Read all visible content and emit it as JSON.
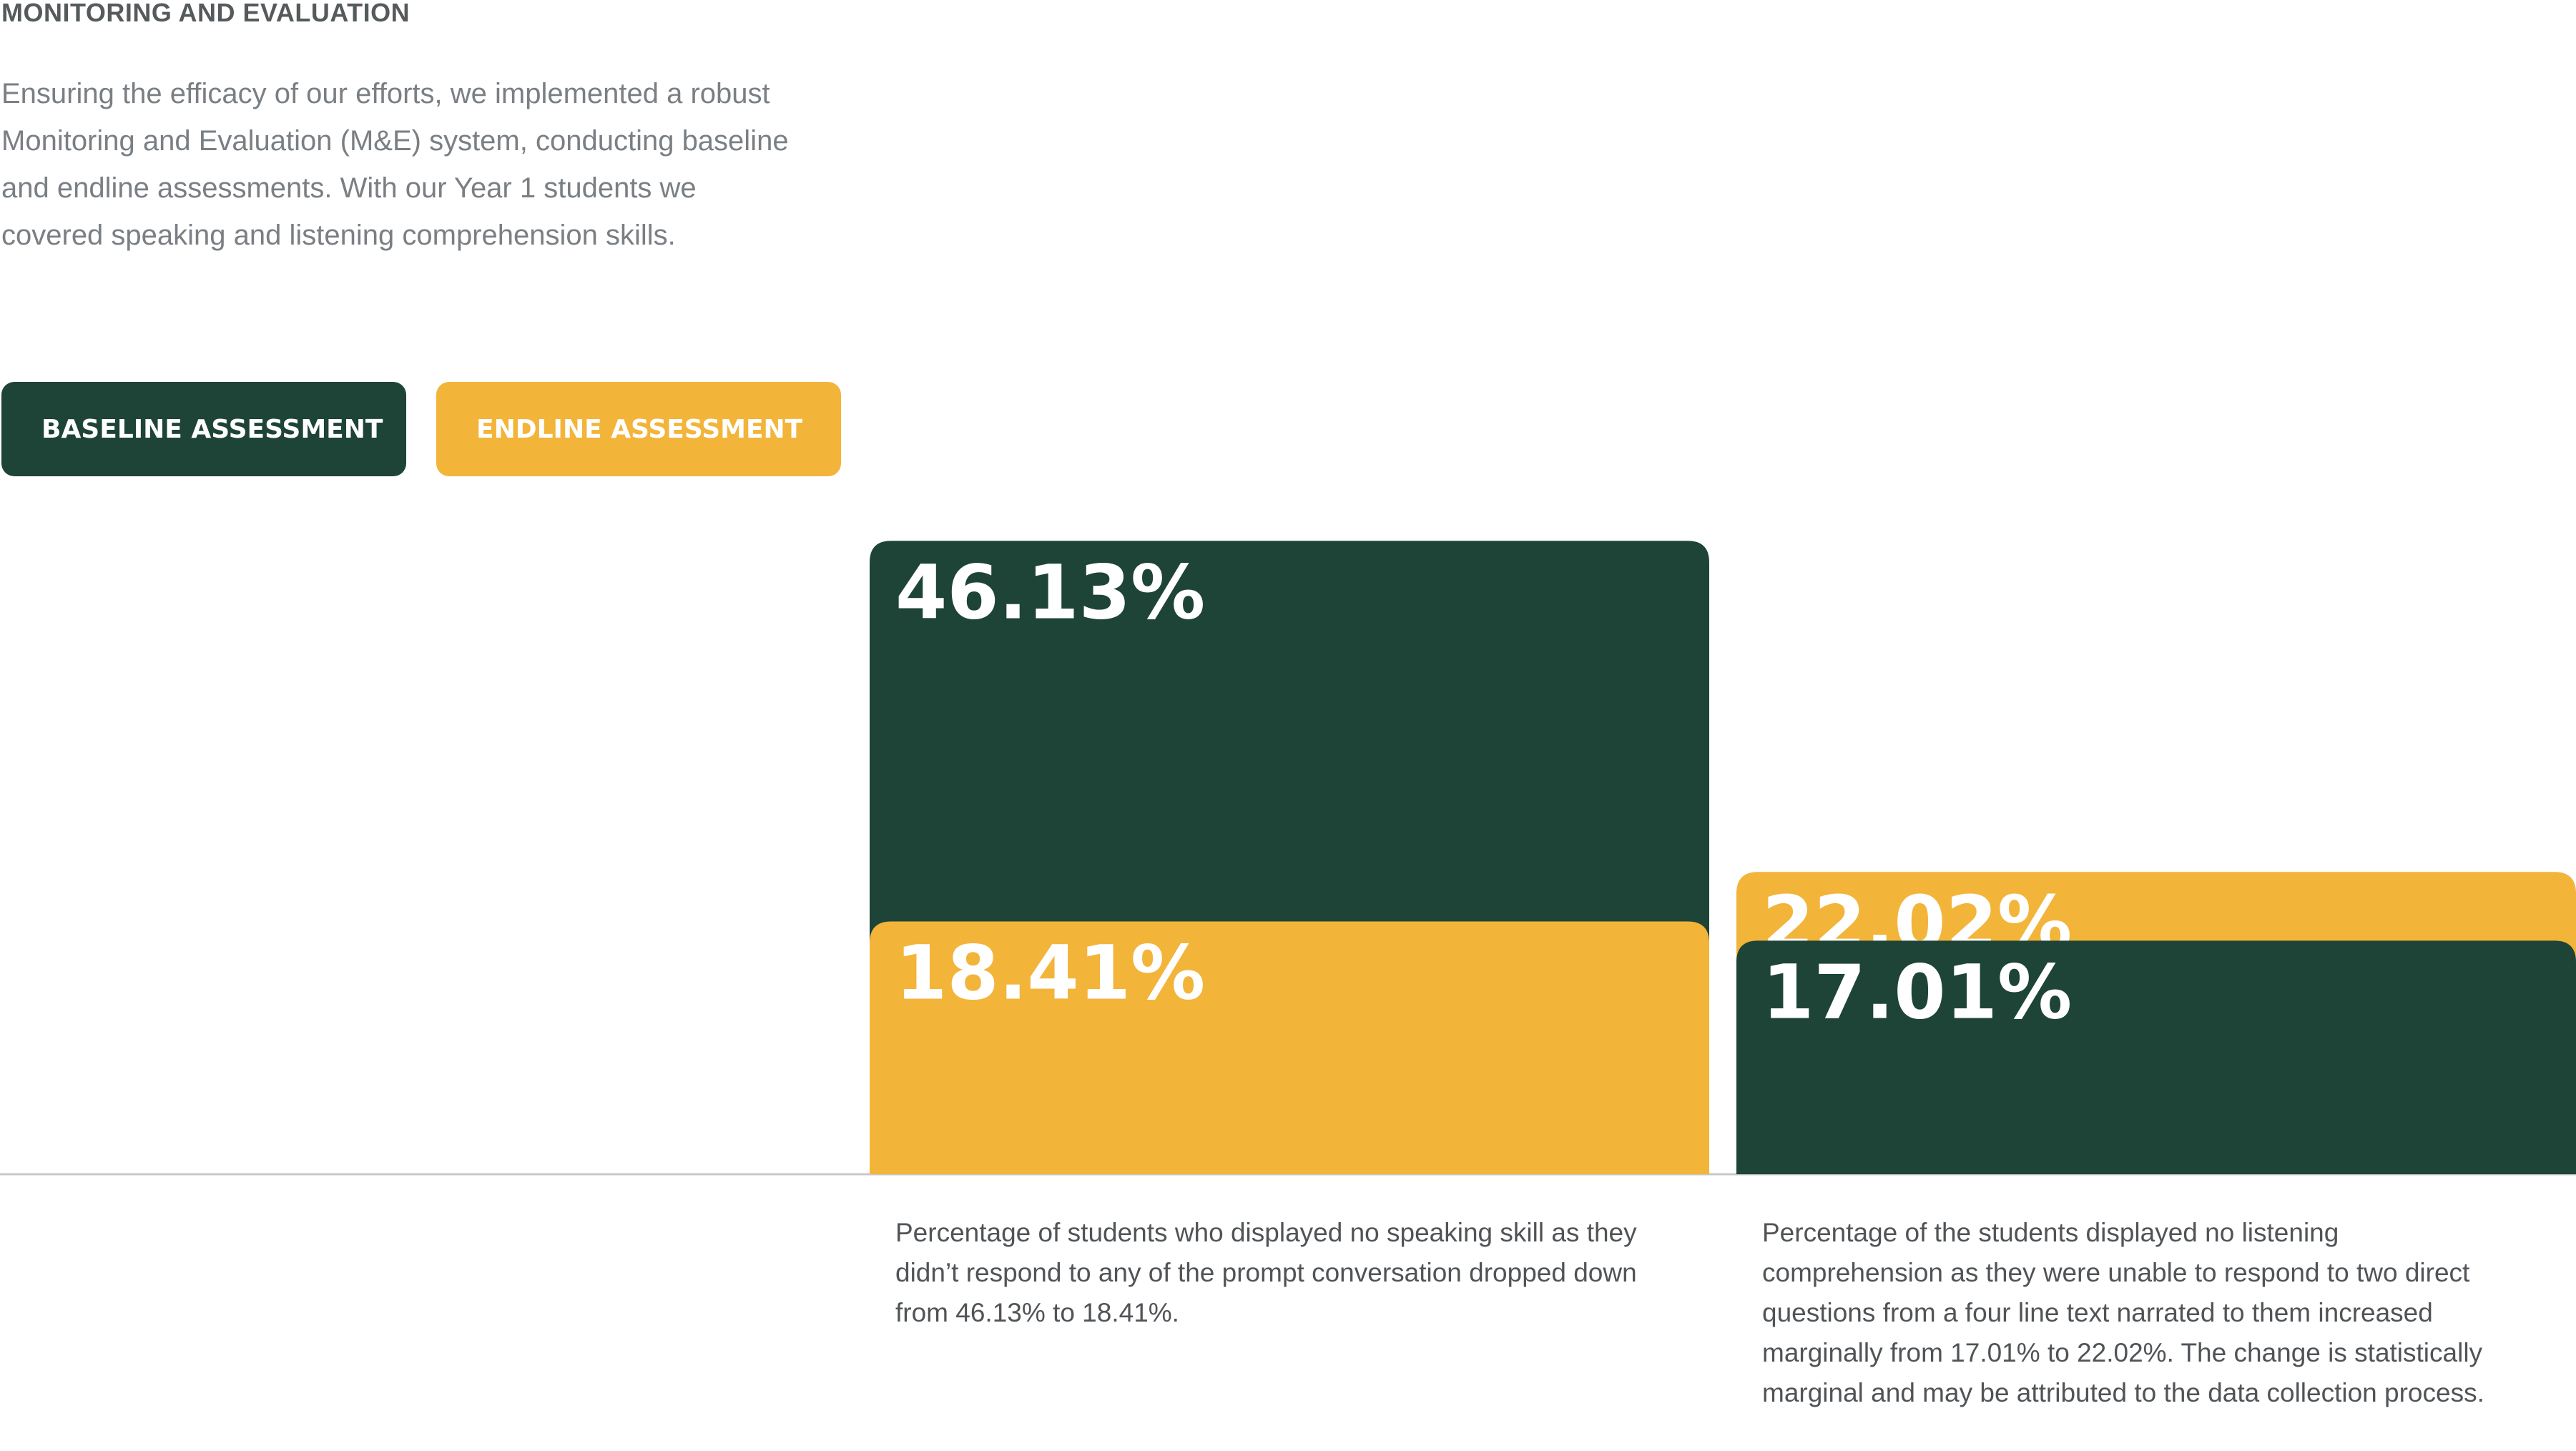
{
  "header": {
    "title": "MONITORING AND EVALUATION",
    "intro": "Ensuring the efficacy of our efforts, we implemented a robust Monitoring and Evaluation (M&E) system, conducting baseline and endline assessments. With our Year 1 students we covered speaking and listening comprehension skills."
  },
  "legend": {
    "baseline_label": "BASELINE ASSESSMENT",
    "endline_label": "ENDLINE ASSESSMENT"
  },
  "colors": {
    "baseline": "#1d4437",
    "endline": "#f3b43a",
    "axis": "#c8c8c8"
  },
  "chart_data": {
    "type": "bar",
    "categories": [
      "Speaking skill",
      "Listening comprehension"
    ],
    "series": [
      {
        "name": "BASELINE ASSESSMENT",
        "values": [
          46.13,
          17.01
        ],
        "labels": [
          "46.13%",
          "17.01%"
        ]
      },
      {
        "name": "ENDLINE ASSESSMENT",
        "values": [
          18.41,
          22.02
        ],
        "labels": [
          "18.41%",
          "22.02%"
        ]
      }
    ],
    "unit": "%",
    "ylim": [
      0,
      50
    ],
    "grid": false,
    "legend": "top-left"
  },
  "captions": {
    "speaking": "Percentage of students who displayed no speaking skill as they didn’t respond to any of the prompt conversation dropped down from 46.13% to 18.41%.",
    "listening": "Percentage of the students displayed no listening comprehension as they were unable to respond to two direct questions from a four line text narrated to them increased marginally from 17.01% to 22.02%. The change is statistically marginal and may be attributed to the data collection process."
  }
}
